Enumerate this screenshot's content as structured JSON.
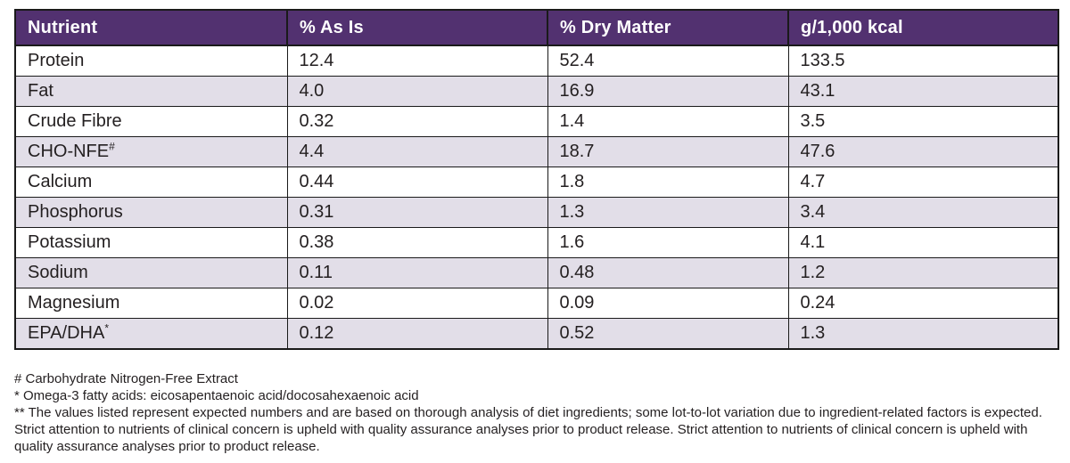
{
  "colors": {
    "header_bg": "#523170",
    "header_text": "#ffffff",
    "row_bg": "#ffffff",
    "row_alt_bg": "#e2dee8",
    "border": "#1a1a1a",
    "text": "#231f20"
  },
  "table": {
    "columns": [
      "Nutrient",
      "% As Is",
      "% Dry Matter",
      "g/1,000 kcal"
    ],
    "rows": [
      {
        "nutrient": "Protein",
        "marker": "",
        "as_is": "12.4",
        "dry_matter": "52.4",
        "g_per_1000_kcal": "133.5"
      },
      {
        "nutrient": "Fat",
        "marker": "",
        "as_is": "4.0",
        "dry_matter": "16.9",
        "g_per_1000_kcal": "43.1"
      },
      {
        "nutrient": "Crude Fibre",
        "marker": "",
        "as_is": "0.32",
        "dry_matter": "1.4",
        "g_per_1000_kcal": "3.5"
      },
      {
        "nutrient": "CHO-NFE",
        "marker": "#",
        "as_is": "4.4",
        "dry_matter": "18.7",
        "g_per_1000_kcal": "47.6"
      },
      {
        "nutrient": "Calcium",
        "marker": "",
        "as_is": "0.44",
        "dry_matter": "1.8",
        "g_per_1000_kcal": "4.7"
      },
      {
        "nutrient": "Phosphorus",
        "marker": "",
        "as_is": "0.31",
        "dry_matter": "1.3",
        "g_per_1000_kcal": "3.4"
      },
      {
        "nutrient": "Potassium",
        "marker": "",
        "as_is": "0.38",
        "dry_matter": "1.6",
        "g_per_1000_kcal": "4.1"
      },
      {
        "nutrient": "Sodium",
        "marker": "",
        "as_is": "0.11",
        "dry_matter": "0.48",
        "g_per_1000_kcal": "1.2"
      },
      {
        "nutrient": "Magnesium",
        "marker": "",
        "as_is": "0.02",
        "dry_matter": "0.09",
        "g_per_1000_kcal": "0.24"
      },
      {
        "nutrient": "EPA/DHA",
        "marker": "*",
        "as_is": "0.12",
        "dry_matter": "0.52",
        "g_per_1000_kcal": "1.3"
      }
    ]
  },
  "footnotes": [
    "# Carbohydrate Nitrogen-Free Extract",
    "* Omega-3 fatty acids: eicosapentaenoic acid/docosahexaenoic acid",
    "** The values listed represent expected numbers and are based on thorough analysis of diet ingredients; some lot-to-lot variation due to ingredient-related factors is expected. Strict attention to nutrients of clinical concern is upheld with quality assurance analyses prior to product release. Strict attention to nutrients of clinical concern is upheld with quality assurance analyses prior to product release."
  ]
}
